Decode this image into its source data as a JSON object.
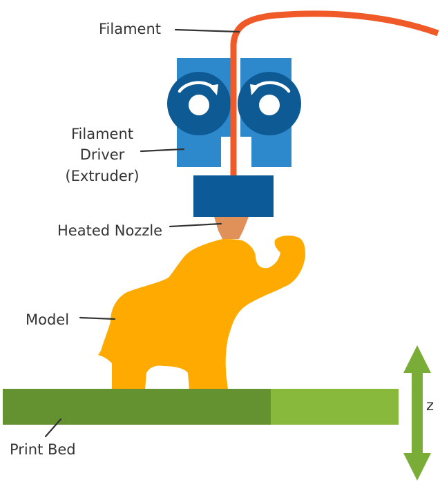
{
  "labels": {
    "filament": "Filament",
    "driver_line1": "Filament",
    "driver_line2": "Driver",
    "driver_line3": "(Extruder)",
    "nozzle": "Heated Nozzle",
    "model": "Model",
    "print_bed": "Print Bed",
    "z_axis": "z"
  },
  "colors": {
    "filament": "#f05a28",
    "extruder_housing": "#2d88cc",
    "gear": "#0d5a94",
    "heater_block": "#0d5a98",
    "nozzle": "#e0915a",
    "model": "#ffaa00",
    "bed_dark": "#659230",
    "bed_light": "#88b93c",
    "z_arrow": "#7aad38",
    "text": "#333333"
  },
  "icons": {
    "left_gear": "clockwise-arrow-icon",
    "right_gear": "counterclockwise-arrow-icon",
    "z_axis": "double-arrow-vertical-icon"
  }
}
